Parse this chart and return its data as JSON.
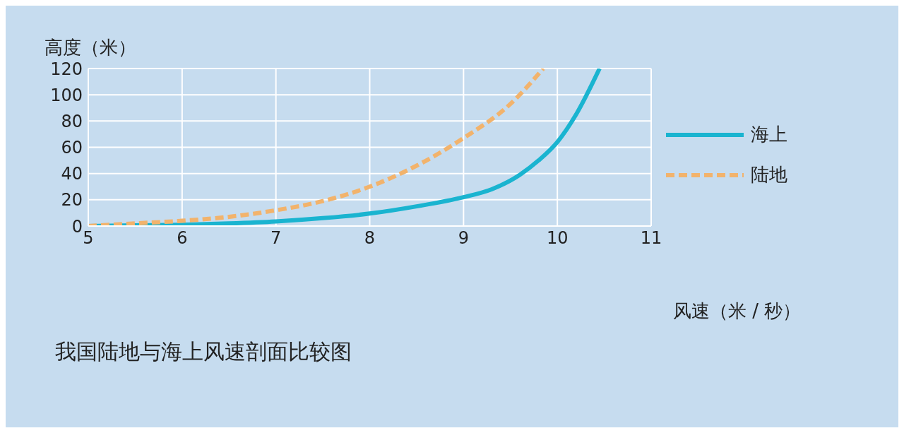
{
  "chart_data": {
    "type": "line",
    "title": "我国陆地与海上风速剖面比较图",
    "xlabel": "风速（米 / 秒）",
    "ylabel": "高度（米）",
    "xlim": [
      5,
      11
    ],
    "xticks": [
      5,
      6,
      7,
      8,
      9,
      10,
      11
    ],
    "ylim": [
      0,
      120
    ],
    "yticks": [
      0,
      20,
      40,
      60,
      80,
      100,
      120
    ],
    "grid": true,
    "legend": "right",
    "marker": "none",
    "series": [
      {
        "name": "海上",
        "color": "#1ab4d0",
        "line_style": "solid",
        "x": [
          5,
          5.5,
          6,
          6.5,
          7,
          7.5,
          8,
          8.5,
          9,
          9.3,
          9.6,
          9.8,
          10,
          10.2,
          10.45
        ],
        "values": [
          0,
          0.5,
          1,
          2,
          3.5,
          6,
          9.5,
          15,
          22,
          28,
          39,
          50,
          64,
          85,
          120
        ]
      },
      {
        "name": "陆地",
        "color": "#f2b36c",
        "line_style": "dashed",
        "x": [
          5,
          5.5,
          6,
          6.5,
          7,
          7.5,
          8,
          8.5,
          9,
          9.5,
          9.85
        ],
        "values": [
          0,
          2,
          4,
          7,
          12,
          19,
          30,
          46,
          67,
          93,
          120
        ]
      }
    ]
  }
}
